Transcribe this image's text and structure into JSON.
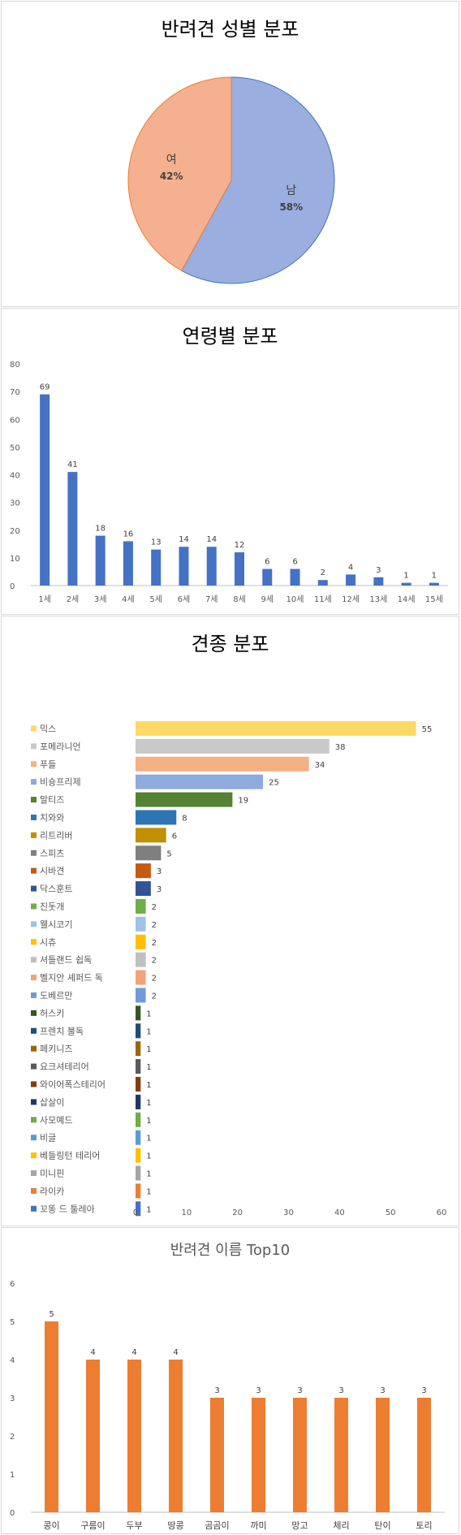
{
  "chart_data": [
    {
      "type": "pie",
      "title": "반려견 성별 분포",
      "labels": [
        "남",
        "여"
      ],
      "values": [
        58,
        42
      ],
      "value_labels": [
        "58%",
        "42%"
      ],
      "colors": [
        "#9AAEE0",
        "#F5B08F"
      ],
      "edge_colors": [
        "#4472C4",
        "#ED7D31"
      ]
    },
    {
      "type": "bar",
      "title": "연령별 분포",
      "categories": [
        "1세",
        "2세",
        "3세",
        "4세",
        "5세",
        "6세",
        "7세",
        "8세",
        "9세",
        "10세",
        "11세",
        "12세",
        "13세",
        "14세",
        "15세"
      ],
      "values": [
        69,
        41,
        18,
        16,
        13,
        14,
        14,
        12,
        6,
        6,
        2,
        4,
        3,
        1,
        1
      ],
      "ylim": [
        0,
        80
      ],
      "yticks": [
        "0",
        "10",
        "20",
        "30",
        "40",
        "50",
        "60",
        "70",
        "80"
      ],
      "color": "#4472C4"
    },
    {
      "type": "bar",
      "orientation": "horizontal",
      "title": "견종 분포",
      "categories": [
        "믹스",
        "포메라니언",
        "푸들",
        "비숑프리제",
        "말티즈",
        "치와와",
        "리트리버",
        "스피츠",
        "시바견",
        "닥스훈트",
        "진돗개",
        "웰시코기",
        "시츄",
        "셔틀랜드 쉽독",
        "벨지안 셰퍼드 독",
        "도베르만",
        "허스키",
        "프렌치 불독",
        "페키니즈",
        "요크셔테리어",
        "와이어폭스테리어",
        "삽살이",
        "사모예드",
        "비글",
        "베들링턴 테리어",
        "미니핀",
        "라이카",
        "꼬똥 드 툴레아"
      ],
      "values": [
        55,
        38,
        34,
        25,
        19,
        8,
        6,
        5,
        3,
        3,
        2,
        2,
        2,
        2,
        2,
        2,
        1,
        1,
        1,
        1,
        1,
        1,
        1,
        1,
        1,
        1,
        1,
        1
      ],
      "colors": [
        "#FFD966",
        "#C9C9C9",
        "#F4B183",
        "#8FAADC",
        "#548235",
        "#2E75B6",
        "#C09000",
        "#7F7F7F",
        "#C55A11",
        "#2F5597",
        "#70AD47",
        "#9DC3E6",
        "#FFC000",
        "#BFBFBF",
        "#F4A27A",
        "#6F9BD8",
        "#375623",
        "#1F4E79",
        "#9C6500",
        "#5A5A5A",
        "#843C0C",
        "#203864",
        "#70AD47",
        "#5B9BD5",
        "#FFC000",
        "#A5A5A5",
        "#ED7D31",
        "#4472C4"
      ],
      "xlim": [
        0,
        60
      ],
      "xticks": [
        "0",
        "10",
        "20",
        "30",
        "40",
        "50",
        "60"
      ]
    },
    {
      "type": "bar",
      "title": "반려견 이름 Top10",
      "categories": [
        "콩이",
        "구름이",
        "두부",
        "땅콩",
        "곰곰이",
        "까미",
        "망고",
        "체리",
        "탄이",
        "토리"
      ],
      "values": [
        5,
        4,
        4,
        4,
        3,
        3,
        3,
        3,
        3,
        3
      ],
      "ylim": [
        0,
        6
      ],
      "yticks": [
        "0",
        "1",
        "2",
        "3",
        "4",
        "5",
        "6"
      ],
      "color": "#ED7D31"
    }
  ]
}
